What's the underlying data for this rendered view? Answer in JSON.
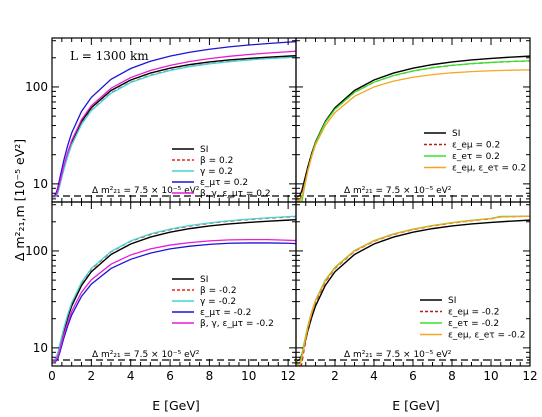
{
  "figure": {
    "ylabel": "Δ m²₂₁,m [10⁻⁵ eV²]",
    "xlabel": "E [GeV]",
    "baseline_annotation": "Δ m²₂₁ = 7.5 × 10⁻⁵ eV²",
    "baseline_value": 7.5,
    "top_left_annotation": "L = 1300 km"
  },
  "chart_data": [
    {
      "type": "line",
      "panel": "top-left",
      "x_range": [
        0,
        12.4
      ],
      "y_range": [
        6.5,
        320
      ],
      "yscale": "log",
      "xticks": [
        0,
        2,
        4,
        6,
        8,
        10,
        12
      ],
      "yticks": [
        10,
        100
      ],
      "legend_position": "center-right",
      "series": [
        {
          "name": "SI",
          "color": "#000000",
          "dash": "solid",
          "x": [
            0,
            0.1,
            0.2,
            0.3,
            0.4,
            0.6,
            0.8,
            1.0,
            1.5,
            2,
            3,
            4,
            5,
            6,
            7,
            8,
            9,
            10,
            11,
            12,
            12.4
          ],
          "y": [
            7.5,
            7.4,
            7.6,
            8.5,
            10.2,
            14.8,
            20.5,
            27,
            44,
            61,
            92,
            118,
            139,
            156,
            170,
            181,
            190,
            197,
            203,
            208,
            210
          ]
        },
        {
          "name": "β = 0.2",
          "color": "#e8201e",
          "dash": "dash",
          "x": [
            0,
            0.1,
            0.2,
            0.3,
            0.4,
            0.6,
            0.8,
            1.0,
            1.5,
            2,
            3,
            4,
            5,
            6,
            7,
            8,
            9,
            10,
            11,
            12,
            12.4
          ],
          "y": [
            7.5,
            7.3,
            7.4,
            8.2,
            9.8,
            14.2,
            19.5,
            25.5,
            41.5,
            57.5,
            87,
            112,
            132,
            149,
            163,
            174,
            183,
            191,
            197,
            202,
            204
          ]
        },
        {
          "name": "γ = 0.2",
          "color": "#3fd6d6",
          "dash": "solid",
          "x": [
            0,
            0.1,
            0.2,
            0.3,
            0.4,
            0.6,
            0.8,
            1.0,
            1.5,
            2,
            3,
            4,
            5,
            6,
            7,
            8,
            9,
            10,
            11,
            12,
            12.4
          ],
          "y": [
            7.5,
            7.3,
            7.4,
            8.1,
            9.7,
            14.0,
            19.2,
            25.2,
            41,
            57,
            86,
            111,
            131,
            148,
            162,
            173,
            182,
            190,
            196,
            201,
            203
          ]
        },
        {
          "name": "ε_μτ = 0.2",
          "color": "#1c14d8",
          "dash": "solid",
          "x": [
            0,
            0.1,
            0.2,
            0.3,
            0.4,
            0.6,
            0.8,
            1.0,
            1.5,
            2,
            3,
            4,
            5,
            6,
            7,
            8,
            9,
            10,
            11,
            12,
            12.4
          ],
          "y": [
            7.5,
            7.5,
            7.9,
            9.2,
            11.5,
            17.5,
            25,
            33.5,
            56,
            78,
            120,
            155,
            184,
            208,
            228,
            245,
            259,
            271,
            281,
            290,
            293
          ]
        },
        {
          "name": "β, γ, ε_μτ = 0.2",
          "color": "#e81bd6",
          "dash": "solid",
          "x": [
            0,
            0.1,
            0.2,
            0.3,
            0.4,
            0.6,
            0.8,
            1.0,
            1.5,
            2,
            3,
            4,
            5,
            6,
            7,
            8,
            9,
            10,
            11,
            12,
            12.4
          ],
          "y": [
            7.5,
            7.4,
            7.6,
            8.6,
            10.4,
            15.3,
            21.2,
            28,
            46,
            64,
            97,
            125,
            148,
            167,
            183,
            196,
            207,
            216,
            224,
            231,
            234
          ]
        }
      ]
    },
    {
      "type": "line",
      "panel": "top-right",
      "x_range": [
        0,
        12
      ],
      "y_range": [
        6.5,
        320
      ],
      "yscale": "log",
      "xticks": [
        0,
        2,
        4,
        6,
        8,
        10,
        12
      ],
      "legend_position": "lower-right",
      "series": [
        {
          "name": "SI",
          "color": "#000000",
          "dash": "solid",
          "x": [
            0,
            0.1,
            0.2,
            0.3,
            0.4,
            0.6,
            0.8,
            1.0,
            1.5,
            2,
            3,
            4,
            5,
            6,
            7,
            8,
            9,
            10,
            11,
            12
          ],
          "y": [
            7.5,
            7.4,
            7.6,
            8.5,
            10.2,
            14.8,
            20.5,
            27,
            44,
            61,
            92,
            118,
            139,
            156,
            170,
            181,
            190,
            197,
            203,
            208
          ]
        },
        {
          "name": "ε_eμ = 0.2",
          "color": "#b02020",
          "dash": "dash",
          "x": [
            0,
            0.1,
            0.2,
            0.3,
            0.4,
            0.6,
            0.8,
            1.0,
            1.5,
            2,
            3,
            4,
            5,
            6,
            7,
            8,
            9,
            10,
            11,
            12
          ],
          "y": [
            7.5,
            7.0,
            6.8,
            7.6,
            9.3,
            14.0,
            19.8,
            26.5,
            43,
            59,
            88,
            112,
            131,
            146,
            158,
            167,
            174,
            179,
            183,
            186
          ]
        },
        {
          "name": "ε_eτ = 0.2",
          "color": "#36e32a",
          "dash": "solid",
          "x": [
            0,
            0.1,
            0.2,
            0.3,
            0.4,
            0.6,
            0.8,
            1.0,
            1.5,
            2,
            3,
            4,
            5,
            6,
            7,
            8,
            9,
            10,
            11,
            12
          ],
          "y": [
            7.5,
            6.6,
            5.6,
            6.4,
            8.5,
            13.5,
            19.5,
            26.5,
            43,
            59,
            88,
            112,
            131,
            146,
            158,
            167,
            174,
            179,
            183,
            186
          ]
        },
        {
          "name": "ε_eμ, ε_eτ = 0.2",
          "color": "#f5a623",
          "dash": "solid",
          "x": [
            0,
            0.1,
            0.2,
            0.3,
            0.4,
            0.6,
            0.8,
            1.0,
            1.5,
            2,
            3,
            4,
            5,
            6,
            7,
            8,
            9,
            10,
            11,
            12
          ],
          "y": [
            7.5,
            6.9,
            6.6,
            7.3,
            8.9,
            13.4,
            18.9,
            25.2,
            40,
            54.5,
            80,
            100,
            115,
            126,
            134,
            140,
            144,
            147,
            149,
            150
          ]
        }
      ]
    },
    {
      "type": "line",
      "panel": "bottom-left",
      "x_range": [
        0,
        12.4
      ],
      "y_range": [
        6.5,
        320
      ],
      "yscale": "log",
      "xticks": [
        0,
        2,
        4,
        6,
        8,
        10,
        12
      ],
      "yticks": [
        10,
        100
      ],
      "legend_position": "lower-right",
      "series": [
        {
          "name": "SI",
          "color": "#000000",
          "dash": "solid",
          "x": [
            0,
            0.1,
            0.2,
            0.3,
            0.4,
            0.6,
            0.8,
            1.0,
            1.5,
            2,
            3,
            4,
            5,
            6,
            7,
            8,
            9,
            10,
            11,
            12,
            12.4
          ],
          "y": [
            7.5,
            7.4,
            7.6,
            8.5,
            10.2,
            14.8,
            20.5,
            27,
            44,
            61,
            92,
            118,
            139,
            156,
            170,
            181,
            190,
            197,
            203,
            208,
            210
          ]
        },
        {
          "name": "β = -0.2",
          "color": "#e8201e",
          "dash": "dash",
          "x": [
            0,
            0.1,
            0.2,
            0.3,
            0.4,
            0.6,
            0.8,
            1.0,
            1.5,
            2,
            3,
            4,
            5,
            6,
            7,
            8,
            9,
            10,
            11,
            12,
            12.4
          ],
          "y": [
            7.5,
            7.5,
            7.8,
            8.9,
            10.8,
            15.7,
            21.8,
            28.8,
            47,
            65,
            98,
            126,
            148,
            166,
            181,
            193,
            203,
            211,
            218,
            224,
            226
          ]
        },
        {
          "name": "γ = -0.2",
          "color": "#3fd6d6",
          "dash": "solid",
          "x": [
            0,
            0.1,
            0.2,
            0.3,
            0.4,
            0.6,
            0.8,
            1.0,
            1.5,
            2,
            3,
            4,
            5,
            6,
            7,
            8,
            9,
            10,
            11,
            12,
            12.4
          ],
          "y": [
            7.5,
            7.5,
            7.8,
            8.9,
            10.9,
            15.9,
            22.1,
            29.2,
            47.5,
            66,
            99,
            127,
            150,
            168,
            183,
            195,
            205,
            213,
            220,
            226,
            228
          ]
        },
        {
          "name": "ε_μτ = -0.2",
          "color": "#1c14d8",
          "dash": "solid",
          "x": [
            0,
            0.1,
            0.2,
            0.3,
            0.4,
            0.6,
            0.8,
            1.0,
            1.5,
            2,
            3,
            4,
            5,
            6,
            7,
            8,
            9,
            10,
            11,
            12,
            12.4
          ],
          "y": [
            7.5,
            7.3,
            7.3,
            7.8,
            9.0,
            12.6,
            16.9,
            21.8,
            34,
            45.5,
            66,
            82,
            95,
            105,
            112,
            117,
            120,
            121,
            121,
            120,
            119
          ]
        },
        {
          "name": "β, γ, ε_μτ = -0.2",
          "color": "#e81bd6",
          "dash": "solid",
          "x": [
            0,
            0.1,
            0.2,
            0.3,
            0.4,
            0.6,
            0.8,
            1.0,
            1.5,
            2,
            3,
            4,
            5,
            6,
            7,
            8,
            9,
            10,
            11,
            12,
            12.4
          ],
          "y": [
            7.5,
            7.4,
            7.5,
            8.2,
            9.6,
            13.6,
            18.4,
            23.8,
            37.5,
            50.5,
            73,
            91,
            105,
            115,
            122,
            127,
            130,
            131,
            131,
            129,
            128
          ]
        }
      ]
    },
    {
      "type": "line",
      "panel": "bottom-right",
      "x_range": [
        0,
        12
      ],
      "y_range": [
        6.5,
        320
      ],
      "yscale": "log",
      "xticks": [
        0,
        2,
        4,
        6,
        8,
        10,
        12
      ],
      "legend_position": "lower-right",
      "series": [
        {
          "name": "SI",
          "color": "#000000",
          "dash": "solid",
          "x": [
            0,
            0.1,
            0.2,
            0.3,
            0.4,
            0.6,
            0.8,
            1.0,
            1.5,
            2,
            3,
            4,
            5,
            6,
            7,
            8,
            9,
            10,
            11,
            12
          ],
          "y": [
            7.5,
            7.4,
            7.6,
            8.5,
            10.2,
            14.8,
            20.5,
            27,
            44,
            61,
            92,
            118,
            139,
            156,
            170,
            181,
            190,
            197,
            203,
            208
          ]
        },
        {
          "name": "ε_eμ = -0.2",
          "color": "#b02020",
          "dash": "dash",
          "x": [
            0,
            0.1,
            0.2,
            0.3,
            0.4,
            0.6,
            0.8,
            1.0,
            1.5,
            2,
            3,
            4,
            5,
            6,
            7,
            8,
            9,
            10,
            10.5,
            11,
            12
          ],
          "y": [
            7.5,
            6.3,
            5.9,
            6.9,
            9.2,
            15.0,
            22.0,
            29.5,
            48,
            66,
            99,
            126,
            148,
            166,
            181,
            194,
            205,
            215,
            225,
            226,
            228
          ]
        },
        {
          "name": "ε_eτ = -0.2",
          "color": "#36e32a",
          "dash": "solid",
          "x": [
            0,
            0.1,
            0.2,
            0.3,
            0.4,
            0.6,
            0.8,
            1.0,
            1.5,
            2,
            3,
            4,
            5,
            6,
            7,
            8,
            9,
            10,
            10.5,
            11,
            12
          ],
          "y": [
            7.5,
            6.8,
            7.0,
            8.4,
            10.8,
            16.6,
            23.5,
            31,
            50,
            68,
            101,
            128,
            150,
            168,
            183,
            196,
            207,
            217,
            227,
            227,
            228
          ]
        },
        {
          "name": "ε_eμ, ε_eτ = -0.2",
          "color": "#f5a623",
          "dash": "solid",
          "x": [
            0,
            0.1,
            0.2,
            0.3,
            0.4,
            0.6,
            0.8,
            1.0,
            1.5,
            2,
            3,
            4,
            5,
            6,
            7,
            8,
            9,
            10,
            10.5,
            11,
            12
          ],
          "y": [
            7.5,
            6.6,
            6.6,
            7.9,
            10.2,
            16.0,
            23.0,
            30.5,
            49,
            67,
            100,
            127,
            149,
            167,
            182,
            195,
            206,
            216,
            224,
            226,
            228
          ]
        }
      ]
    }
  ]
}
